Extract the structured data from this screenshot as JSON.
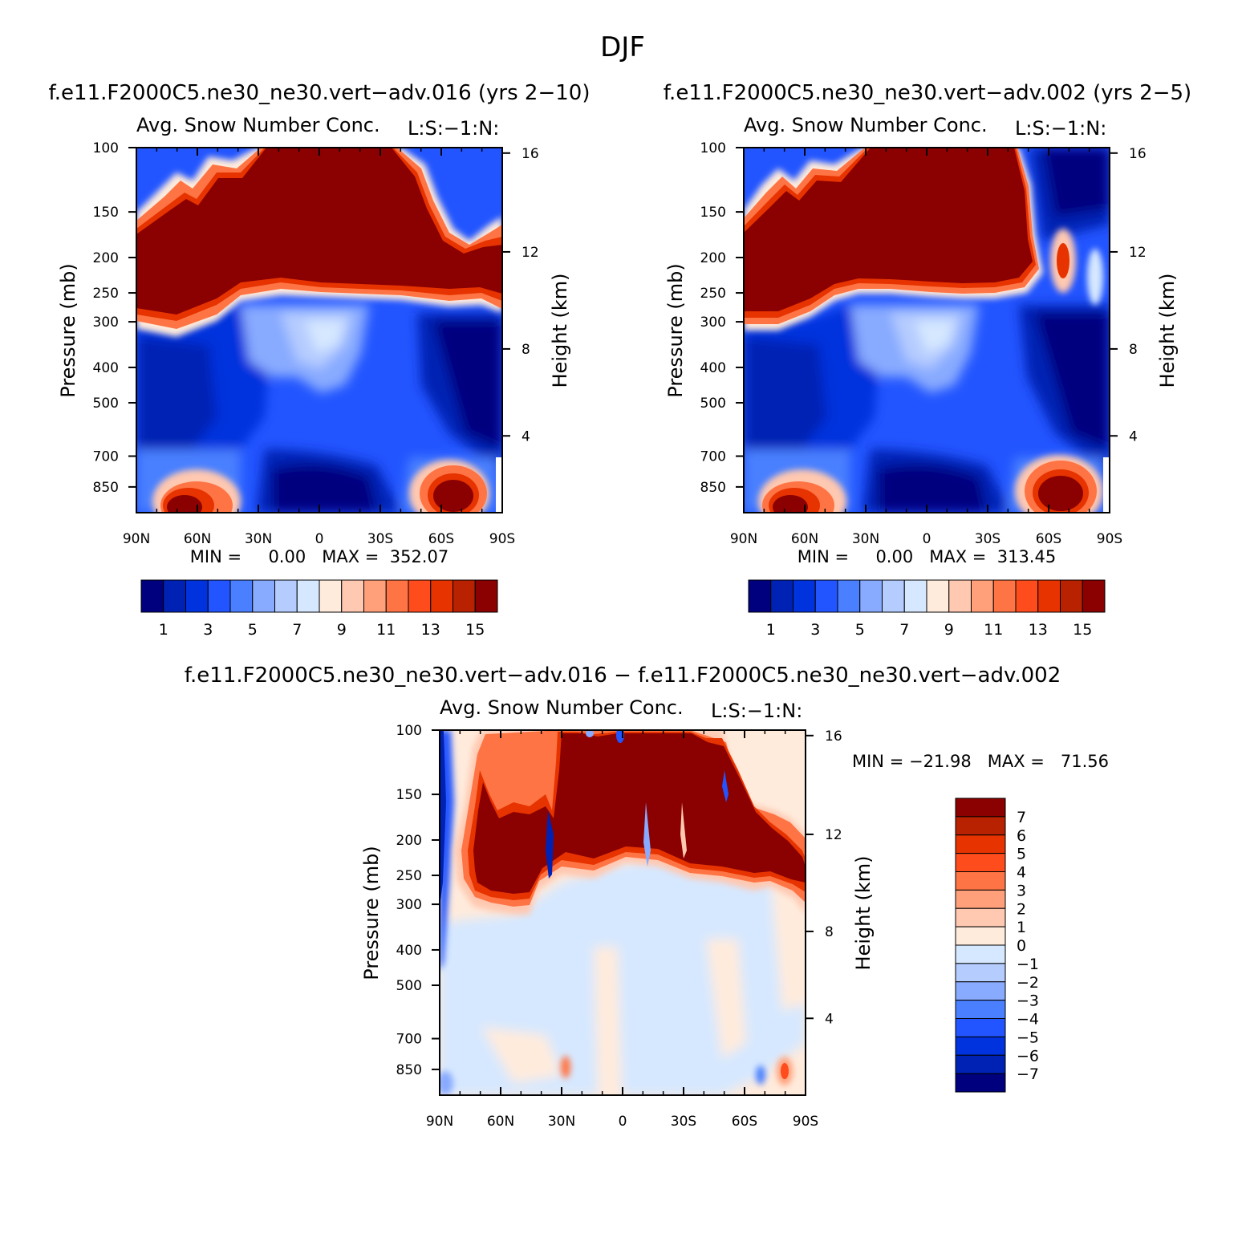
{
  "figure": {
    "title": "DJF"
  },
  "panels": [
    {
      "id": "p1",
      "case_title": "f.e11.F2000C5.ne30_ne30.vert−adv.016 (yrs 2−10)",
      "plot_title": "Avg. Snow Number Conc.",
      "corner_label": "L:S:−1:N:",
      "ylabel": "Pressure (mb)",
      "ylabel_right": "Height (km)",
      "stats_text": "MIN =     0.00   MAX =  352.07"
    },
    {
      "id": "p2",
      "case_title": "f.e11.F2000C5.ne30_ne30.vert−adv.002 (yrs 2−5)",
      "plot_title": "Avg. Snow Number Conc.",
      "corner_label": "L:S:−1:N:",
      "ylabel": "Pressure (mb)",
      "ylabel_right": "Height (km)",
      "stats_text": "MIN =     0.00   MAX =  313.45"
    },
    {
      "id": "p3",
      "case_title": "f.e11.F2000C5.ne30_ne30.vert−adv.016  −  f.e11.F2000C5.ne30_ne30.vert−adv.002",
      "plot_title": "Avg. Snow Number Conc.",
      "corner_label": "L:S:−1:N:",
      "ylabel": "Pressure (mb)",
      "ylabel_right": "Height (km)",
      "stats_text": "MIN = −21.98   MAX =   71.56"
    }
  ],
  "chart_data": [
    {
      "type": "heatmap",
      "panel": "p1",
      "title": "Avg. Snow Number Conc.",
      "xlabel": "",
      "ylabel": "Pressure (mb)",
      "ylabel_right": "Height (km)",
      "x_ticks": [
        "90N",
        "60N",
        "30N",
        "0",
        "30S",
        "60S",
        "90S"
      ],
      "x_range": [
        90,
        -90
      ],
      "y_ticks": [
        100,
        150,
        200,
        250,
        300,
        400,
        500,
        700,
        850
      ],
      "y_range": [
        100,
        1000
      ],
      "y_right_ticks": [
        16,
        12,
        8,
        4
      ],
      "min": 0.0,
      "max": 352.07,
      "colorbar_labels": [
        "1",
        "3",
        "5",
        "7",
        "9",
        "11",
        "13",
        "15"
      ],
      "colors": [
        "#00007f",
        "#0022b4",
        "#0033dd",
        "#2255ff",
        "#4a80ff",
        "#88aaff",
        "#b5ccff",
        "#d6e8ff",
        "#ffebdc",
        "#ffc8b0",
        "#ffa07a",
        "#ff7444",
        "#ff4c1c",
        "#e63300",
        "#b82200",
        "#8b0000"
      ]
    },
    {
      "type": "heatmap",
      "panel": "p2",
      "title": "Avg. Snow Number Conc.",
      "xlabel": "",
      "ylabel": "Pressure (mb)",
      "ylabel_right": "Height (km)",
      "x_ticks": [
        "90N",
        "60N",
        "30N",
        "0",
        "30S",
        "60S",
        "90S"
      ],
      "x_range": [
        90,
        -90
      ],
      "y_ticks": [
        100,
        150,
        200,
        250,
        300,
        400,
        500,
        700,
        850
      ],
      "y_range": [
        100,
        1000
      ],
      "y_right_ticks": [
        16,
        12,
        8,
        4
      ],
      "min": 0.0,
      "max": 313.45,
      "colorbar_labels": [
        "1",
        "3",
        "5",
        "7",
        "9",
        "11",
        "13",
        "15"
      ],
      "colors": [
        "#00007f",
        "#0022b4",
        "#0033dd",
        "#2255ff",
        "#4a80ff",
        "#88aaff",
        "#b5ccff",
        "#d6e8ff",
        "#ffebdc",
        "#ffc8b0",
        "#ffa07a",
        "#ff7444",
        "#ff4c1c",
        "#e63300",
        "#b82200",
        "#8b0000"
      ]
    },
    {
      "type": "heatmap",
      "panel": "p3",
      "title": "Avg. Snow Number Conc.",
      "xlabel": "",
      "ylabel": "Pressure (mb)",
      "ylabel_right": "Height (km)",
      "x_ticks": [
        "90N",
        "60N",
        "30N",
        "0",
        "30S",
        "60S",
        "90S"
      ],
      "x_range": [
        90,
        -90
      ],
      "y_ticks": [
        100,
        150,
        200,
        250,
        300,
        400,
        500,
        700,
        850
      ],
      "y_range": [
        100,
        1000
      ],
      "y_right_ticks": [
        16,
        12,
        8,
        4
      ],
      "min": -21.98,
      "max": 71.56,
      "colorbar_labels": [
        "7",
        "6",
        "5",
        "4",
        "3",
        "2",
        "1",
        "0",
        "−1",
        "−2",
        "−3",
        "−4",
        "−5",
        "−6",
        "−7"
      ],
      "colors": [
        "#8b0000",
        "#b82200",
        "#e63300",
        "#ff4c1c",
        "#ff7444",
        "#ffa07a",
        "#ffc8b0",
        "#ffebdc",
        "#d6e8ff",
        "#b5ccff",
        "#88aaff",
        "#4a80ff",
        "#2255ff",
        "#0033dd",
        "#0022b4",
        "#00007f"
      ]
    }
  ]
}
